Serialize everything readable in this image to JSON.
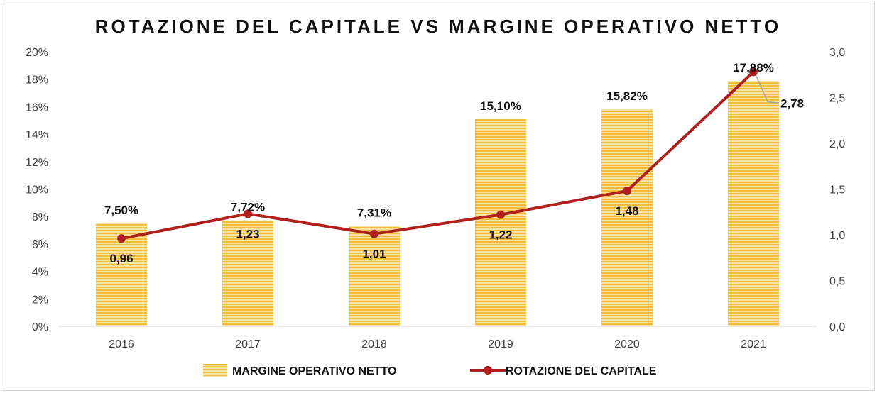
{
  "chart_data": {
    "type": "bar",
    "title": "ROTAZIONE DEL CAPITALE VS MARGINE OPERATIVO NETTO",
    "categories": [
      "2016",
      "2017",
      "2018",
      "2019",
      "2020",
      "2021"
    ],
    "series": [
      {
        "name": "MARGINE OPERATIVO  NETTO",
        "type": "bar",
        "axis": "left",
        "values": [
          7.5,
          7.72,
          7.31,
          15.1,
          15.82,
          17.88
        ],
        "labels": [
          "7,50%",
          "7,72%",
          "7,31%",
          "15,10%",
          "15,82%",
          "17,88%"
        ],
        "color": "#f2c037"
      },
      {
        "name": "ROTAZIONE DEL CAPITALE",
        "type": "line",
        "axis": "right",
        "values": [
          0.96,
          1.23,
          1.01,
          1.22,
          1.48,
          2.78
        ],
        "labels": [
          "0,96",
          "1,23",
          "1,01",
          "1,22",
          "1,48",
          "2,78"
        ],
        "color": "#b0201c"
      }
    ],
    "y_left": {
      "ylim": [
        0,
        20
      ],
      "ticks": [
        0,
        2,
        4,
        6,
        8,
        10,
        12,
        14,
        16,
        18,
        20
      ],
      "tick_labels": [
        "0%",
        "2%",
        "4%",
        "6%",
        "8%",
        "10%",
        "12%",
        "14%",
        "16%",
        "18%",
        "20%"
      ]
    },
    "y_right": {
      "ylim": [
        0,
        3
      ],
      "ticks": [
        0,
        0.5,
        1,
        1.5,
        2,
        2.5,
        3
      ],
      "tick_labels": [
        "0,0",
        "0,5",
        "1,0",
        "1,5",
        "2,0",
        "2,5",
        "3,0"
      ]
    },
    "grid": false,
    "legend": "bottom"
  }
}
